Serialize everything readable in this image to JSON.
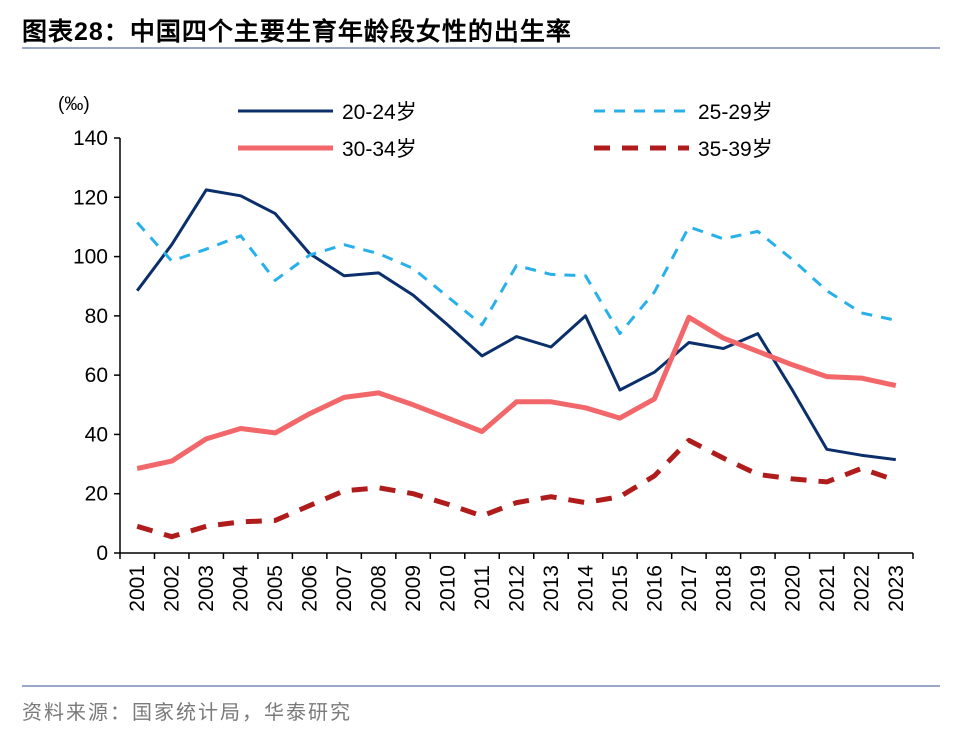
{
  "header": {
    "label": "图表28：",
    "title": "中国四个主要生育年龄段女性的出生率"
  },
  "footer": {
    "source": "资料来源：国家统计局，华泰研究"
  },
  "chart_data": {
    "type": "line",
    "unit_label": "(‰)",
    "ylim": [
      0,
      140
    ],
    "yticks": [
      0,
      20,
      40,
      60,
      80,
      100,
      120,
      140
    ],
    "grid": false,
    "legend": "top",
    "x": [
      "2001",
      "2002",
      "2003",
      "2004",
      "2005",
      "2006",
      "2007",
      "2008",
      "2009",
      "2010",
      "2011",
      "2012",
      "2013",
      "2014",
      "2015",
      "2016",
      "2017",
      "2018",
      "2019",
      "2020",
      "2021",
      "2022",
      "2023"
    ],
    "series": [
      {
        "name": "20-24岁",
        "color": "#0b2f6b",
        "dash": "solid",
        "width": 3,
        "values": [
          88.5,
          104,
          122.5,
          120.5,
          114.5,
          101,
          93.5,
          94.5,
          87,
          77,
          66.5,
          73,
          69.5,
          80,
          55,
          61,
          71,
          69,
          74,
          55,
          35,
          33,
          31.5
        ]
      },
      {
        "name": "25-29岁",
        "color": "#28b0ea",
        "dash": "dashed",
        "width": 3,
        "values": [
          111.5,
          98.5,
          102.5,
          107,
          92,
          100.5,
          104,
          101,
          96,
          86.5,
          77,
          97,
          94,
          93.5,
          74,
          88,
          110,
          106,
          108.5,
          99,
          88.5,
          81,
          78.5
        ]
      },
      {
        "name": "30-34岁",
        "color": "#f2676a",
        "dash": "solid",
        "width": 5,
        "values": [
          28.5,
          31,
          38.5,
          42,
          40.5,
          47,
          52.5,
          54,
          50,
          45.5,
          41,
          51,
          51,
          49,
          45.5,
          52,
          79.5,
          72.5,
          68,
          63.5,
          59.5,
          59,
          56.5
        ]
      },
      {
        "name": "35-39岁",
        "color": "#b01c1c",
        "dash": "dashed",
        "width": 5,
        "values": [
          9,
          5.5,
          9,
          10.5,
          11,
          16,
          21,
          22,
          20,
          16.5,
          12.5,
          17,
          19,
          17,
          19,
          26,
          38,
          32,
          26.5,
          25,
          24,
          28.5,
          24.5
        ]
      }
    ]
  }
}
